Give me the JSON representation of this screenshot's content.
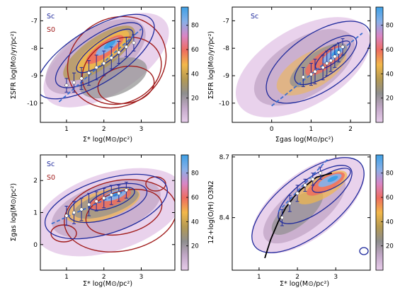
{
  "colors": {
    "sc": "#1f2a9c",
    "s0": "#a11d1d",
    "fit": "#3a6fd0",
    "points": "#ffffff",
    "errorbar": "#1f2a9c",
    "curve": "#000000",
    "colorbar": [
      "#e7cdea",
      "#c3a8c8",
      "#8f8f8f",
      "#b59a52",
      "#f2b84a",
      "#ef6d5f",
      "#d986c5",
      "#87b0e8",
      "#3ea0e6"
    ]
  },
  "chart_data": [
    {
      "type": "scatter",
      "panel": "top-left",
      "ylabel": "ΣSFR log(M⊙/yr/pc²)",
      "xlabel": "Σ* log(M⊙/pc²)",
      "xticks": [
        "1",
        "2",
        "3"
      ],
      "yticks": [
        "-7",
        "-8",
        "-9",
        "-10"
      ],
      "xlim": [
        0.3,
        3.9
      ],
      "ylim": [
        -10.7,
        -6.5
      ],
      "legend": [
        "Sc",
        "S0"
      ],
      "colorbar_ticks": [
        "20",
        "40",
        "60",
        "80"
      ],
      "median_x": [
        1.0,
        1.2,
        1.4,
        1.6,
        1.8,
        2.0,
        2.2,
        2.4,
        2.6,
        2.8
      ],
      "median_y": [
        -9.35,
        -9.25,
        -9.1,
        -8.9,
        -8.7,
        -8.55,
        -8.35,
        -8.15,
        -7.95,
        -7.8
      ],
      "err": [
        0.25,
        0.35,
        0.4,
        0.45,
        0.45,
        0.45,
        0.4,
        0.4,
        0.35,
        0.3
      ],
      "fit_x": [
        0.8,
        3.0
      ],
      "fit_y": [
        -9.95,
        -7.3
      ]
    },
    {
      "type": "scatter",
      "panel": "top-right",
      "ylabel": "ΣSFR log(M⊙/yr/pc²)",
      "xlabel": "Σgas log(M⊙/pc²)",
      "xticks": [
        "0",
        "1",
        "2"
      ],
      "yticks": [
        "-7",
        "-8",
        "-9",
        "-10"
      ],
      "xlim": [
        -1.0,
        2.5
      ],
      "ylim": [
        -10.7,
        -6.5
      ],
      "legend": [
        "Sc"
      ],
      "colorbar_ticks": [
        "20",
        "40",
        "60",
        "80"
      ],
      "median_x": [
        0.8,
        1.0,
        1.1,
        1.3,
        1.4,
        1.5,
        1.6,
        1.7,
        1.8
      ],
      "median_y": [
        -9.05,
        -8.95,
        -8.85,
        -8.7,
        -8.55,
        -8.45,
        -8.3,
        -8.15,
        -7.95
      ],
      "err": [
        0.35,
        0.4,
        0.45,
        0.45,
        0.45,
        0.4,
        0.4,
        0.35,
        0.3
      ],
      "fit_x": [
        0.0,
        2.3
      ],
      "fit_y": [
        -10.1,
        -7.45
      ]
    },
    {
      "type": "scatter",
      "panel": "bottom-left",
      "ylabel": "Σgas log(M⊙/pc²)",
      "xlabel": "Σ* log(M⊙/pc²)",
      "xticks": [
        "1",
        "2",
        "3"
      ],
      "yticks": [
        "2",
        "1",
        "0"
      ],
      "xlim": [
        0.3,
        3.9
      ],
      "ylim": [
        -0.8,
        2.8
      ],
      "legend": [
        "Sc",
        "S0"
      ],
      "colorbar_ticks": [
        "20",
        "40",
        "60",
        "80"
      ],
      "median_x": [
        1.0,
        1.2,
        1.4,
        1.6,
        1.8,
        2.0,
        2.2,
        2.4,
        2.6
      ],
      "median_y": [
        0.9,
        1.0,
        1.1,
        1.25,
        1.35,
        1.45,
        1.55,
        1.6,
        1.7
      ],
      "err": [
        0.3,
        0.35,
        0.35,
        0.35,
        0.3,
        0.3,
        0.3,
        0.25,
        0.25
      ],
      "fit_x": [
        0.6,
        2.7
      ],
      "fit_y": [
        0.65,
        1.75
      ]
    },
    {
      "type": "scatter",
      "panel": "bottom-right",
      "ylabel": "12+log(O/H) O3N2",
      "xlabel": "Σ* log(M⊙/pc²)",
      "xticks": [
        "1",
        "2",
        "3"
      ],
      "yticks": [
        "8.7",
        "8.4"
      ],
      "xlim": [
        0.3,
        3.9
      ],
      "ylim": [
        8.14,
        8.71
      ],
      "colorbar_ticks": [
        "20",
        "40",
        "60",
        "80"
      ],
      "median_x": [
        1.6,
        1.8,
        2.0,
        2.2,
        2.4,
        2.6
      ],
      "median_y": [
        8.4,
        8.47,
        8.52,
        8.56,
        8.59,
        8.62
      ],
      "err": [
        0.04,
        0.04,
        0.04,
        0.03,
        0.03,
        0.03
      ],
      "fit_x": [
        1.5,
        2.8
      ],
      "fit_y": [
        8.43,
        8.69
      ],
      "curve_x": [
        1.15,
        1.3,
        1.5,
        1.7,
        1.9,
        2.1,
        2.3,
        2.5,
        2.7,
        2.9
      ],
      "curve_y": [
        8.2,
        8.29,
        8.38,
        8.45,
        8.5,
        8.54,
        8.57,
        8.6,
        8.61,
        8.62
      ]
    }
  ]
}
